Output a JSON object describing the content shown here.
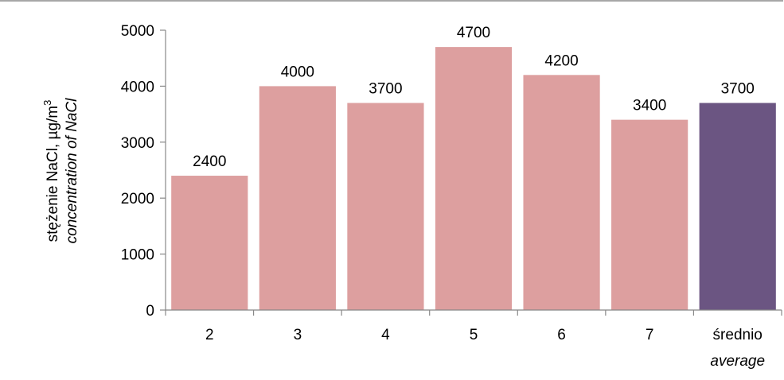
{
  "chart_data": {
    "type": "bar",
    "categories": [
      "2",
      "3",
      "4",
      "5",
      "6",
      "7",
      "średnio"
    ],
    "category_sublabels": [
      "",
      "",
      "",
      "",
      "",
      "",
      "average"
    ],
    "values": [
      2400,
      4000,
      3700,
      4700,
      4200,
      3400,
      3700
    ],
    "data_labels": [
      "2400",
      "4000",
      "3700",
      "4700",
      "4200",
      "3400",
      "3700"
    ],
    "ylabel": "stężenie NaCl, µg/m",
    "ylabel_superscript": "3",
    "ylabel_secondary": "concentration of NaCl",
    "ylim": [
      0,
      5000
    ],
    "yticks": [
      "0",
      "1000",
      "2000",
      "3000",
      "4000",
      "5000"
    ],
    "grid": false,
    "colors": {
      "bar": "#dd9f9f",
      "highlight": "#6b5582",
      "axis": "#888888",
      "frame": "#8a8a8a"
    },
    "highlight_index": 6
  }
}
